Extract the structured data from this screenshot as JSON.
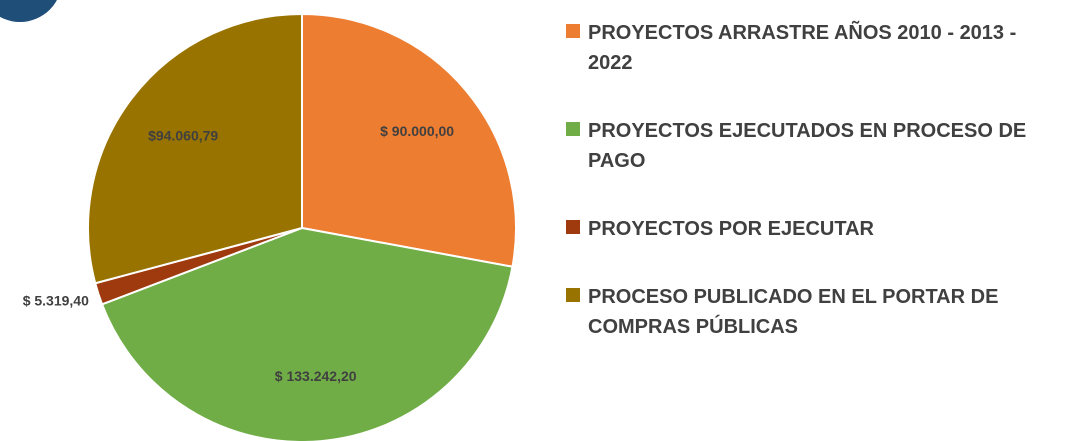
{
  "chart_data": {
    "type": "pie",
    "categories": [
      "PROYECTOS ARRASTRE AÑOS 2010 - 2013 - 2022",
      "PROYECTOS EJECUTADOS EN PROCESO DE PAGO",
      "PROYECTOS POR EJECUTAR",
      "PROCESO PUBLICADO EN EL PORTAR DE COMPRAS PÚBLICAS"
    ],
    "values": [
      90000.0,
      133242.2,
      5319.4,
      94060.79
    ],
    "value_labels": [
      "$ 90.000,00",
      "$ 133.242,20",
      "$ 5.319,40",
      "$94.060,79"
    ],
    "colors": [
      "#ed7d31",
      "#70ad47",
      "#9e3a0e",
      "#997300"
    ],
    "legend": "right"
  }
}
